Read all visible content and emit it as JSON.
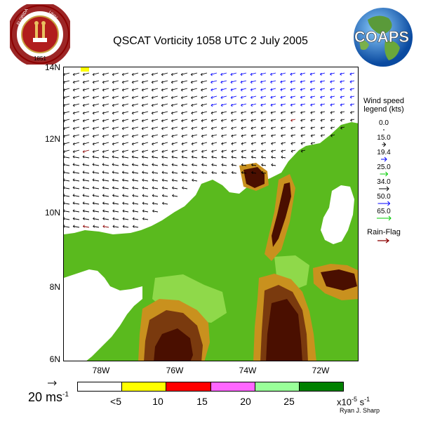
{
  "title": "QSCAT Vorticity 1058 UTC 2 July 2005",
  "logos": {
    "left": "FLORIDA STATE UNIVERSITY 1851",
    "right": "COAPS"
  },
  "map": {
    "y_ticks": [
      "14N",
      "12N",
      "10N",
      "8N",
      "6N"
    ],
    "x_ticks": [
      "78W",
      "76W",
      "74W",
      "72W"
    ],
    "colors": {
      "ocean": "#ffffff",
      "land": "#5aba1e",
      "light_green": "#8fd94a",
      "orange": "#c9911e",
      "brown": "#7a3a0e",
      "dark_brown": "#4a0f00"
    }
  },
  "wind_legend": {
    "title": "Wind speed legend (kts)",
    "items": [
      {
        "value": "0.0",
        "color": "#000000"
      },
      {
        "value": "15.0",
        "color": "#000000"
      },
      {
        "value": "19.4",
        "color": "#0000ff"
      },
      {
        "value": "25.0",
        "color": "#00cc00"
      },
      {
        "value": "34.0",
        "color": "#000000"
      },
      {
        "value": "50.0",
        "color": "#0000ff"
      },
      {
        "value": "65.0",
        "color": "#00cc00"
      }
    ],
    "rain_flag_label": "Rain-Flag",
    "rain_flag_color": "#8b0000"
  },
  "scale_vector_label": "20 ms",
  "scale_vector_exp": "-1",
  "colorbar": {
    "colors": [
      "#ffffff",
      "#ffff00",
      "#ff0000",
      "#ff66ff",
      "#99ff99",
      "#008000"
    ],
    "labels": [
      "<5",
      "10",
      "15",
      "20",
      "25"
    ],
    "units_prefix": "x10",
    "units_exp": "-5",
    "units_suffix": "s",
    "units_exp2": "-1"
  },
  "credit": "Ryan J. Sharp"
}
